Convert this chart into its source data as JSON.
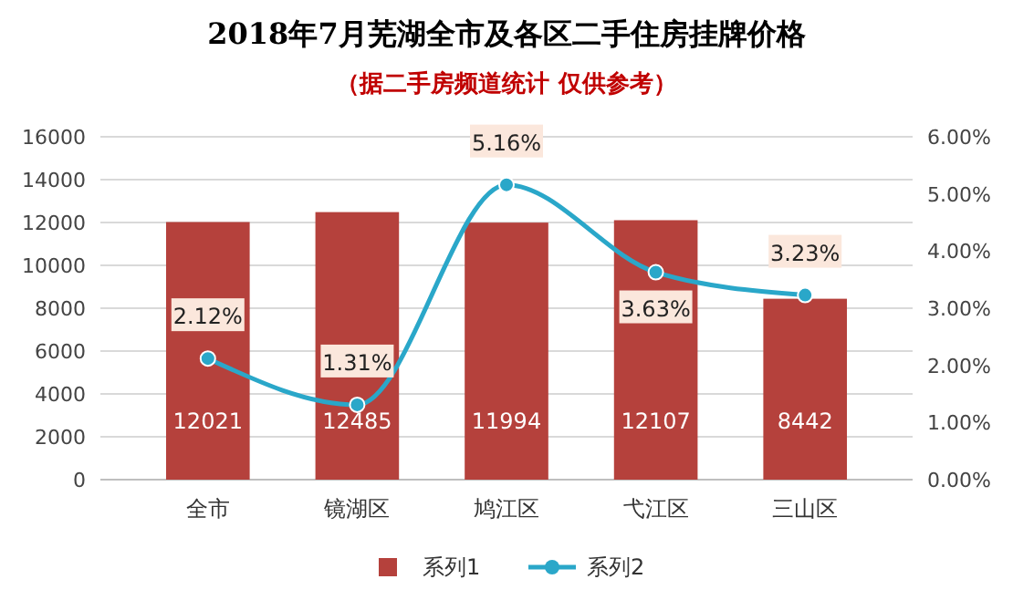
{
  "chart_data": {
    "type": "bar",
    "title": "2018年7月芜湖全市及各区二手住房挂牌价格",
    "subtitle": "（据二手房频道统计 仅供参考）",
    "categories": [
      "全市",
      "镜湖区",
      "鸠江区",
      "弋江区",
      "三山区"
    ],
    "series": [
      {
        "name": "系列1",
        "color": "#b5413c",
        "values": [
          12021,
          12485,
          11994,
          12107,
          8442
        ],
        "value_labels": [
          "12021",
          "12485",
          "11994",
          "12107",
          "8442"
        ]
      },
      {
        "name": "系列2",
        "type": "line",
        "axis": "y2",
        "color": "#2aa7c9",
        "values": [
          2.12,
          1.31,
          5.16,
          3.63,
          3.23
        ],
        "value_labels": [
          "2.12%",
          "1.31%",
          "5.16%",
          "3.63%",
          "3.23%"
        ]
      }
    ],
    "ylim": [
      0,
      16000
    ],
    "yticks": [
      0,
      2000,
      4000,
      6000,
      8000,
      10000,
      12000,
      14000,
      16000
    ],
    "y2lim": [
      0,
      6
    ],
    "y2ticks": [
      {
        "value": 0,
        "label": "0.00%"
      },
      {
        "value": 1,
        "label": "1.00%"
      },
      {
        "value": 2,
        "label": "2.00%"
      },
      {
        "value": 3,
        "label": "3.00%"
      },
      {
        "value": 4,
        "label": "4.00%"
      },
      {
        "value": 5,
        "label": "5.00%"
      },
      {
        "value": 6,
        "label": "6.00%"
      }
    ],
    "grid": "y",
    "legend": "bottom",
    "marker": "circle",
    "line_style": "solid"
  }
}
